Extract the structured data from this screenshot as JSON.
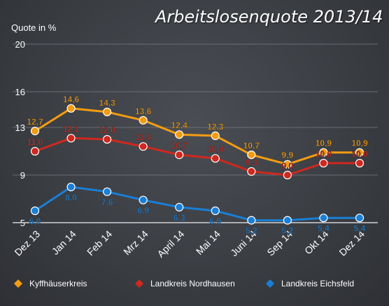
{
  "chart_data": {
    "type": "line",
    "title": "Arbeitslosenquote 2013/14",
    "ylabel": "Quote in %",
    "xlabel": "",
    "ylim": [
      5,
      20
    ],
    "yticks": [
      5,
      9,
      13,
      16,
      20
    ],
    "grid": true,
    "legend_position": "bottom",
    "categories": [
      "Dez 13",
      "Jan 14",
      "Feb 14",
      "Mrz 14",
      "April 14",
      "Mai 14",
      "Juni 14",
      "Sep 14",
      "Okt 14",
      "Dez 14"
    ],
    "series": [
      {
        "name": "Kyffhäuserkreis",
        "color": "#f39c12",
        "values": [
          12.7,
          14.6,
          14.3,
          13.6,
          12.4,
          12.3,
          10.7,
          9.9,
          10.9,
          10.9
        ],
        "labels": [
          "12,7",
          "14,6",
          "14,3",
          "13,6",
          "12,4",
          "12,3",
          "10,7",
          "9,9",
          "10,9",
          "10,9"
        ]
      },
      {
        "name": "Landkreis Nordhausen",
        "color": "#d0281e",
        "values": [
          11.0,
          12.1,
          12.0,
          11.4,
          10.7,
          10.4,
          9.3,
          9.0,
          10.0,
          10.0
        ],
        "labels": [
          "11,0",
          "12,1",
          "12,0",
          "11,4",
          "10,7",
          "10,4",
          "9,3",
          "9,0",
          "10,0",
          "10,0"
        ]
      },
      {
        "name": "Landkreis Eichsfeld",
        "color": "#1a7fd6",
        "values": [
          6.0,
          8.0,
          7.6,
          6.9,
          6.3,
          6.0,
          5.2,
          5.2,
          5.4,
          5.4
        ],
        "labels": [
          "6,0",
          "8,0",
          "7,6",
          "6,9",
          "6,3",
          "6,0",
          "5,2",
          "5,2",
          "5,4",
          "5,4"
        ]
      }
    ]
  }
}
